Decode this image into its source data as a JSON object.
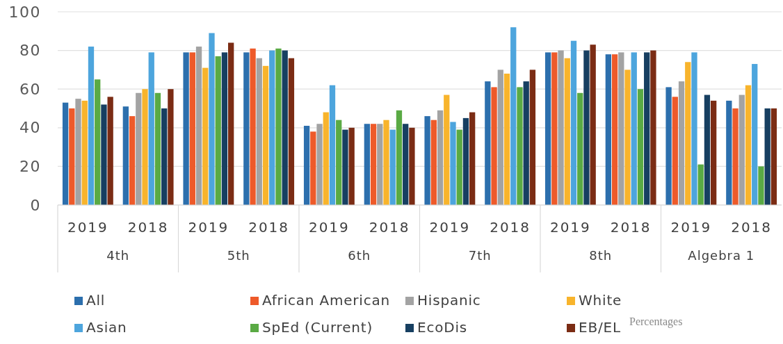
{
  "chart_data": {
    "type": "bar",
    "categories": [
      "2019",
      "2018",
      "2019",
      "2018",
      "2019",
      "2018",
      "2019",
      "2018",
      "2019",
      "2018",
      "2019",
      "2018"
    ],
    "series": [
      {
        "name": "All",
        "color": "#2c6fad",
        "values": [
          53,
          51,
          79,
          79,
          41,
          42,
          46,
          64,
          79,
          78,
          61,
          54
        ]
      },
      {
        "name": "African American",
        "color": "#ee5a2a",
        "values": [
          50,
          46,
          79,
          81,
          38,
          42,
          44,
          61,
          79,
          78,
          56,
          50
        ]
      },
      {
        "name": "Hispanic",
        "color": "#a3a3a3",
        "values": [
          55,
          58,
          82,
          76,
          42,
          42,
          49,
          70,
          80,
          79,
          64,
          57
        ]
      },
      {
        "name": "White",
        "color": "#f8b42c",
        "values": [
          54,
          60,
          71,
          72,
          48,
          44,
          57,
          68,
          76,
          70,
          74,
          62
        ]
      },
      {
        "name": "Asian",
        "color": "#4da5dd",
        "values": [
          82,
          79,
          89,
          80,
          62,
          39,
          43,
          92,
          85,
          79,
          79,
          73
        ]
      },
      {
        "name": "SpEd (Current)",
        "color": "#5aaa44",
        "values": [
          65,
          58,
          77,
          81,
          44,
          49,
          39,
          61,
          58,
          60,
          21,
          20
        ]
      },
      {
        "name": "EcoDis",
        "color": "#173f61",
        "values": [
          52,
          50,
          79,
          80,
          39,
          42,
          45,
          64,
          80,
          79,
          57,
          50
        ]
      },
      {
        "name": "EB/EL",
        "color": "#7b2c14",
        "values": [
          56,
          60,
          84,
          76,
          40,
          40,
          48,
          70,
          83,
          80,
          54,
          50
        ]
      }
    ],
    "ylim": [
      0,
      100
    ],
    "yticks": [
      0,
      20,
      40,
      60,
      80,
      100
    ],
    "grid": "y",
    "legend": "bottom",
    "annotations": [
      "4th",
      "5th",
      "6th",
      "7th",
      "8th",
      "Algebra 1",
      "Percentages"
    ]
  }
}
